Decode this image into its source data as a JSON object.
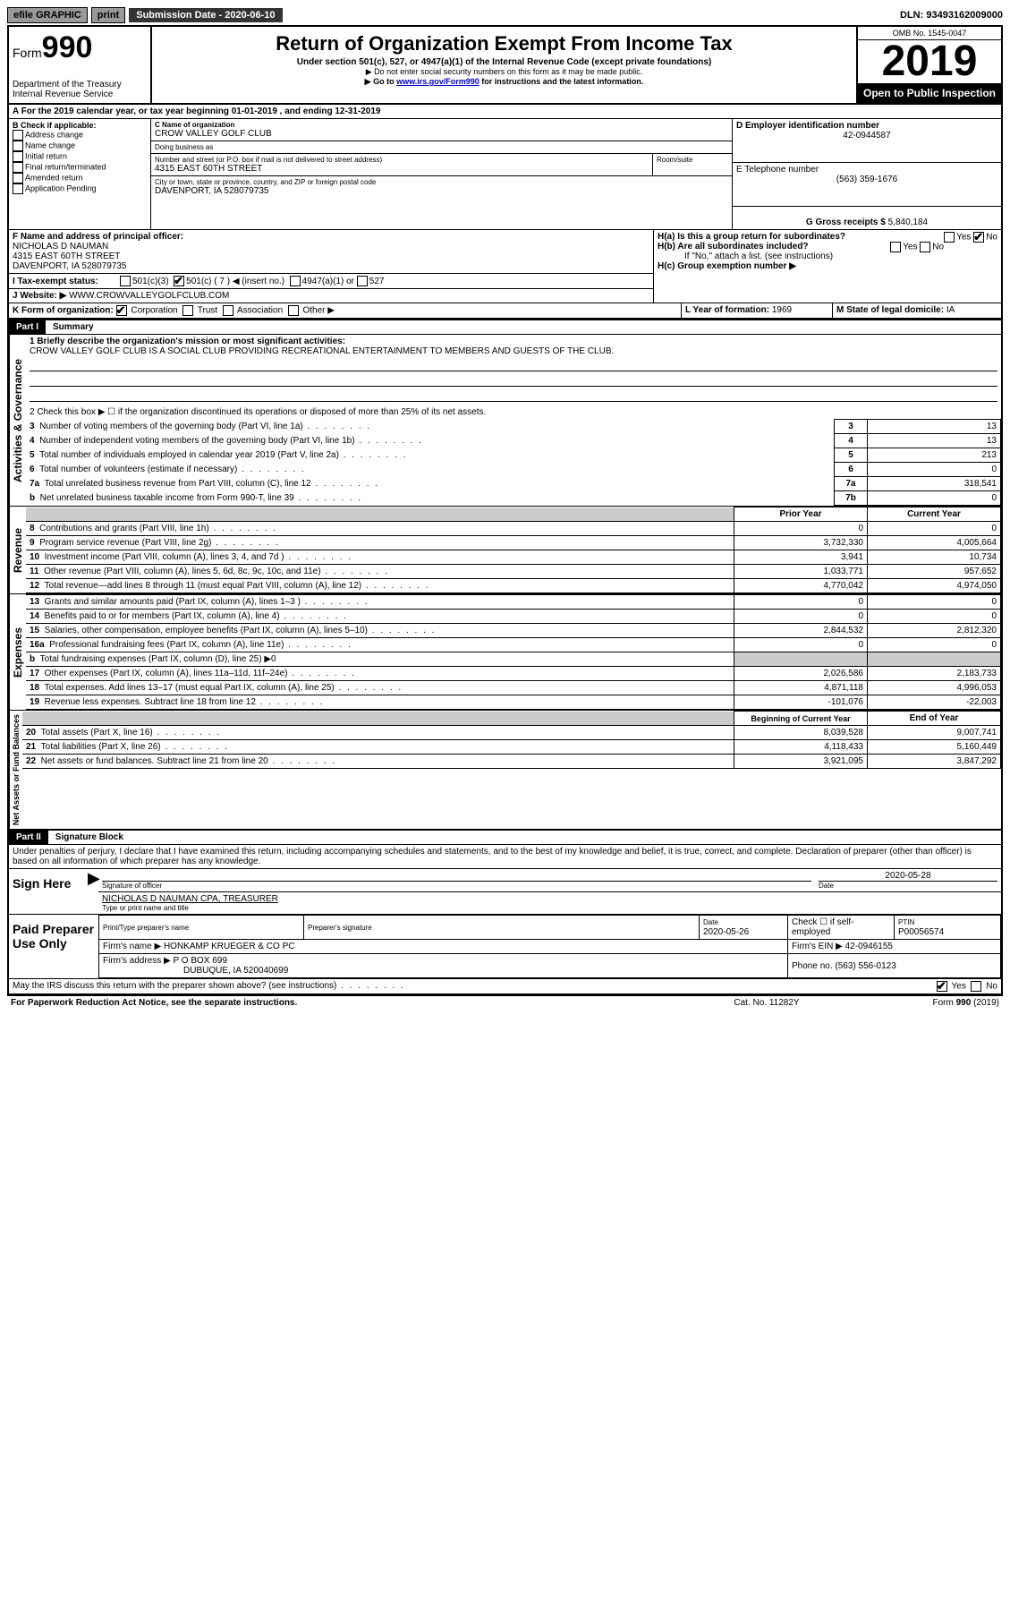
{
  "topbar": {
    "efile": "efile GRAPHIC",
    "print": "print",
    "submission_label": "Submission Date - 2020-06-10",
    "dln": "DLN: 93493162009000"
  },
  "header": {
    "form_prefix": "Form",
    "form_number": "990",
    "dept": "Department of the Treasury",
    "irs": "Internal Revenue Service",
    "title": "Return of Organization Exempt From Income Tax",
    "subtitle": "Under section 501(c), 527, or 4947(a)(1) of the Internal Revenue Code (except private foundations)",
    "note1": "▶ Do not enter social security numbers on this form as it may be made public.",
    "note2_pre": "▶ Go to ",
    "note2_link": "www.irs.gov/Form990",
    "note2_post": " for instructions and the latest information.",
    "omb": "OMB No. 1545-0047",
    "year": "2019",
    "open": "Open to Public Inspection"
  },
  "period": {
    "text_pre": "A For the 2019 calendar year, or tax year beginning ",
    "begin": "01-01-2019",
    "mid": " , and ending ",
    "end": "12-31-2019"
  },
  "boxB": {
    "label": "B Check if applicable:",
    "addr_change": "Address change",
    "name_change": "Name change",
    "initial": "Initial return",
    "final": "Final return/terminated",
    "amended": "Amended return",
    "app_pending": "Application Pending"
  },
  "boxC": {
    "name_label": "C Name of organization",
    "name": "CROW VALLEY GOLF CLUB",
    "dba_label": "Doing business as",
    "dba": "",
    "addr_label": "Number and street (or P.O. box if mail is not delivered to street address)",
    "room_label": "Room/suite",
    "addr": "4315 EAST 60TH STREET",
    "city_label": "City or town, state or province, country, and ZIP or foreign postal code",
    "city": "DAVENPORT, IA  528079735"
  },
  "boxD": {
    "label": "D Employer identification number",
    "value": "42-0944587"
  },
  "boxE": {
    "label": "E Telephone number",
    "value": "(563) 359-1676"
  },
  "boxG": {
    "label": "G Gross receipts $",
    "value": "5,840,184"
  },
  "boxF": {
    "label": "F Name and address of principal officer:",
    "name": "NICHOLAS D NAUMAN",
    "addr1": "4315 EAST 60TH STREET",
    "addr2": "DAVENPORT, IA  528079735"
  },
  "boxH": {
    "a_label": "H(a) Is this a group return for subordinates?",
    "b_label": "H(b) Are all subordinates included?",
    "b_note": "If \"No,\" attach a list. (see instructions)",
    "c_label": "H(c) Group exemption number ▶",
    "yes": "Yes",
    "no": "No"
  },
  "boxI": {
    "label": "I Tax-exempt status:",
    "c3": "501(c)(3)",
    "c": "501(c) ( 7 ) ◀ (insert no.)",
    "a1": "4947(a)(1) or",
    "s527": "527"
  },
  "boxJ": {
    "label": "J  Website: ▶",
    "value": "WWW.CROWVALLEYGOLFCLUB.COM"
  },
  "boxK": {
    "label": "K Form of organization:",
    "corp": "Corporation",
    "trust": "Trust",
    "assoc": "Association",
    "other": "Other ▶"
  },
  "boxL": {
    "label": "L Year of formation:",
    "value": "1969"
  },
  "boxM": {
    "label": "M State of legal domicile:",
    "value": "IA"
  },
  "part1": {
    "header": "Part I",
    "title": "Summary",
    "line1_label": "1  Briefly describe the organization's mission or most significant activities:",
    "line1_text": "CROW VALLEY GOLF CLUB IS A SOCIAL CLUB PROVIDING RECREATIONAL ENTERTAINMENT TO MEMBERS AND GUESTS OF THE CLUB.",
    "line2": "2   Check this box ▶ ☐ if the organization discontinued its operations or disposed of more than 25% of its net assets.",
    "rows_simple": [
      {
        "n": "3",
        "label": "Number of voting members of the governing body (Part VI, line 1a)",
        "box": "3",
        "val": "13"
      },
      {
        "n": "4",
        "label": "Number of independent voting members of the governing body (Part VI, line 1b)",
        "box": "4",
        "val": "13"
      },
      {
        "n": "5",
        "label": "Total number of individuals employed in calendar year 2019 (Part V, line 2a)",
        "box": "5",
        "val": "213"
      },
      {
        "n": "6",
        "label": "Total number of volunteers (estimate if necessary)",
        "box": "6",
        "val": "0"
      },
      {
        "n": "7a",
        "label": "Total unrelated business revenue from Part VIII, column (C), line 12",
        "box": "7a",
        "val": "318,541"
      },
      {
        "n": "b",
        "label": "Net unrelated business taxable income from Form 990-T, line 39",
        "box": "7b",
        "val": "0"
      }
    ],
    "col_prior": "Prior Year",
    "col_current": "Current Year",
    "col_boy": "Beginning of Current Year",
    "col_eoy": "End of Year",
    "rows_rev": [
      {
        "n": "8",
        "label": "Contributions and grants (Part VIII, line 1h)",
        "p": "0",
        "c": "0"
      },
      {
        "n": "9",
        "label": "Program service revenue (Part VIII, line 2g)",
        "p": "3,732,330",
        "c": "4,005,664"
      },
      {
        "n": "10",
        "label": "Investment income (Part VIII, column (A), lines 3, 4, and 7d )",
        "p": "3,941",
        "c": "10,734"
      },
      {
        "n": "11",
        "label": "Other revenue (Part VIII, column (A), lines 5, 6d, 8c, 9c, 10c, and 11e)",
        "p": "1,033,771",
        "c": "957,652"
      },
      {
        "n": "12",
        "label": "Total revenue—add lines 8 through 11 (must equal Part VIII, column (A), line 12)",
        "p": "4,770,042",
        "c": "4,974,050"
      }
    ],
    "rows_exp": [
      {
        "n": "13",
        "label": "Grants and similar amounts paid (Part IX, column (A), lines 1–3 )",
        "p": "0",
        "c": "0"
      },
      {
        "n": "14",
        "label": "Benefits paid to or for members (Part IX, column (A), line 4)",
        "p": "0",
        "c": "0"
      },
      {
        "n": "15",
        "label": "Salaries, other compensation, employee benefits (Part IX, column (A), lines 5–10)",
        "p": "2,844,532",
        "c": "2,812,320"
      },
      {
        "n": "16a",
        "label": "Professional fundraising fees (Part IX, column (A), line 11e)",
        "p": "0",
        "c": "0"
      },
      {
        "n": "b",
        "label": "Total fundraising expenses (Part IX, column (D), line 25) ▶0",
        "p": "",
        "c": ""
      },
      {
        "n": "17",
        "label": "Other expenses (Part IX, column (A), lines 11a–11d, 11f–24e)",
        "p": "2,026,586",
        "c": "2,183,733"
      },
      {
        "n": "18",
        "label": "Total expenses. Add lines 13–17 (must equal Part IX, column (A), line 25)",
        "p": "4,871,118",
        "c": "4,996,053"
      },
      {
        "n": "19",
        "label": "Revenue less expenses. Subtract line 18 from line 12",
        "p": "-101,076",
        "c": "-22,003"
      }
    ],
    "rows_na": [
      {
        "n": "20",
        "label": "Total assets (Part X, line 16)",
        "p": "8,039,528",
        "c": "9,007,741"
      },
      {
        "n": "21",
        "label": "Total liabilities (Part X, line 26)",
        "p": "4,118,433",
        "c": "5,160,449"
      },
      {
        "n": "22",
        "label": "Net assets or fund balances. Subtract line 21 from line 20",
        "p": "3,921,095",
        "c": "3,847,292"
      }
    ],
    "vlabel_ag": "Activities & Governance",
    "vlabel_rev": "Revenue",
    "vlabel_exp": "Expenses",
    "vlabel_na": "Net Assets or Fund Balances"
  },
  "part2": {
    "header": "Part II",
    "title": "Signature Block",
    "perjury": "Under penalties of perjury, I declare that I have examined this return, including accompanying schedules and statements, and to the best of my knowledge and belief, it is true, correct, and complete. Declaration of preparer (other than officer) is based on all information of which preparer has any knowledge.",
    "sign_here": "Sign Here",
    "sig_officer": "Signature of officer",
    "sig_date": "2020-05-28",
    "date_label": "Date",
    "officer_name": "NICHOLAS D NAUMAN  CPA, TREASURER",
    "type_name": "Type or print name and title",
    "paid": "Paid Preparer Use Only",
    "prep_name_label": "Print/Type preparer's name",
    "prep_sig_label": "Preparer's signature",
    "prep_date_label": "Date",
    "prep_date": "2020-05-26",
    "check_self": "Check ☐ if self-employed",
    "ptin_label": "PTIN",
    "ptin": "P00056574",
    "firm_name_label": "Firm's name    ▶",
    "firm_name": "HONKAMP KRUEGER & CO PC",
    "firm_ein_label": "Firm's EIN ▶",
    "firm_ein": "42-0946155",
    "firm_addr_label": "Firm's address ▶",
    "firm_addr1": "P O BOX 699",
    "firm_addr2": "DUBUQUE, IA  520040699",
    "phone_label": "Phone no.",
    "phone": "(563) 556-0123",
    "discuss": "May the IRS discuss this return with the preparer shown above? (see instructions)",
    "paperwork": "For Paperwork Reduction Act Notice, see the separate instructions.",
    "cat": "Cat. No. 11282Y",
    "form_foot": "Form 990 (2019)"
  }
}
